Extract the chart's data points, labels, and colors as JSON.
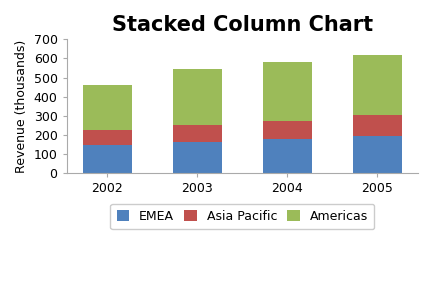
{
  "categories": [
    "2002",
    "2003",
    "2004",
    "2005"
  ],
  "emea": [
    150,
    165,
    180,
    195
  ],
  "asia_pacific": [
    75,
    85,
    95,
    110
  ],
  "americas": [
    235,
    295,
    305,
    315
  ],
  "emea_color": "#4F81BD",
  "asia_color": "#C0504D",
  "americas_color": "#9BBB59",
  "title": "Stacked Column Chart",
  "ylabel": "Revenue (thousands)",
  "ylim": [
    0,
    700
  ],
  "yticks": [
    0,
    100,
    200,
    300,
    400,
    500,
    600,
    700
  ],
  "legend_labels": [
    "EMEA",
    "Asia Pacific",
    "Americas"
  ],
  "bar_width": 0.55,
  "title_fontsize": 15,
  "label_fontsize": 9,
  "tick_fontsize": 9,
  "legend_fontsize": 9,
  "bg_color": "#FFFFFF"
}
